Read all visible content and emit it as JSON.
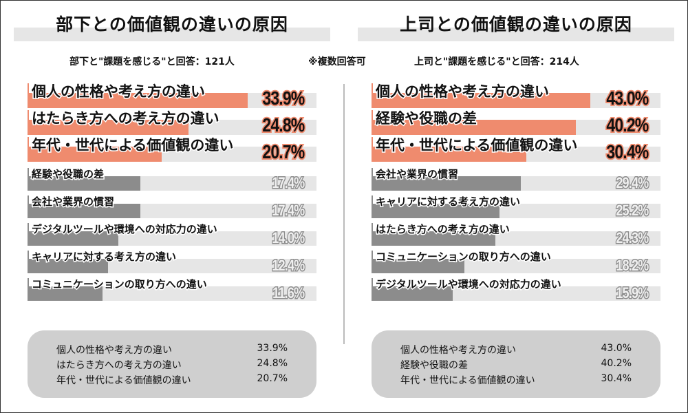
{
  "note": "※複数回答可",
  "colors": {
    "highlight": "#ef8b6e",
    "normal": "#8c8c8c",
    "track": "#e6e6e6",
    "summary_bg": "#cfcfcf"
  },
  "chart_data": [
    {
      "type": "bar",
      "orientation": "horizontal",
      "title": "部下との価値観の違いの原因",
      "subtitle": "部下と\"課題を感じる\"と回答：121人",
      "xlim": [
        0,
        44.5
      ],
      "unit": "%",
      "categories": [
        "個人の性格や考え方の違い",
        "はたらき方への考え方の違い",
        "年代・世代による価値観の違い",
        "経験や役職の差",
        "会社や業界の慣習",
        "デジタルツールや環境への対応力の違い",
        "キャリアに対する考え方の違い",
        "コミュニケーションの取り方への違い"
      ],
      "values": [
        33.9,
        24.8,
        20.7,
        17.4,
        17.4,
        14.0,
        12.4,
        11.6
      ],
      "labels": [
        "33.9%",
        "24.8%",
        "20.7%",
        "17.4%",
        "17.4%",
        "14.0%",
        "12.4%",
        "11.6%"
      ],
      "highlighted_count": 3,
      "summary": [
        {
          "label": "個人の性格や考え方の違い",
          "value": "33.9%"
        },
        {
          "label": "はたらき方への考え方の違い",
          "value": "24.8%"
        },
        {
          "label": "年代・世代による価値観の違い",
          "value": "20.7%"
        }
      ]
    },
    {
      "type": "bar",
      "orientation": "horizontal",
      "title": "上司との価値観の違いの原因",
      "subtitle": "上司と\"課題を感じる\"と回答：214人",
      "xlim": [
        0,
        56.8
      ],
      "unit": "%",
      "categories": [
        "個人の性格や考え方の違い",
        "経験や役職の差",
        "年代・世代による価値観の違い",
        "会社や業界の慣習",
        "キャリアに対する考え方の違い",
        "はたらき方への考え方の違い",
        "コミュニケーションの取り方への違い",
        "デジタルツールや環境への対応力の違い"
      ],
      "values": [
        43.0,
        40.2,
        30.4,
        29.4,
        25.2,
        24.3,
        18.2,
        15.9
      ],
      "labels": [
        "43.0%",
        "40.2%",
        "30.4%",
        "29.4%",
        "25.2%",
        "24.3%",
        "18.2%",
        "15.9%"
      ],
      "highlighted_count": 3,
      "summary": [
        {
          "label": "個人の性格や考え方の違い",
          "value": "43.0%"
        },
        {
          "label": "経験や役職の差",
          "value": "40.2%"
        },
        {
          "label": "年代・世代による価値観の違い",
          "value": "30.4%"
        }
      ]
    }
  ]
}
